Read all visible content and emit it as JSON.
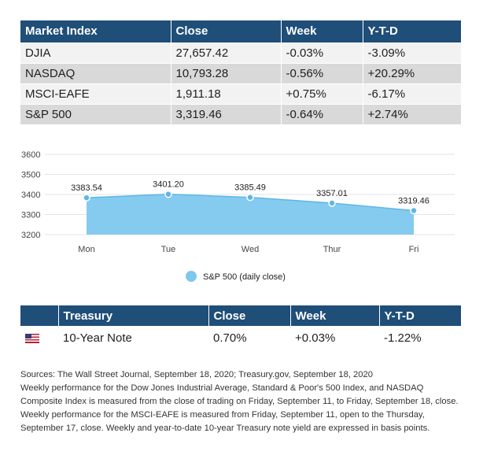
{
  "market": {
    "headers": [
      "Market Index",
      "Close",
      "Week",
      "Y-T-D"
    ],
    "rows": [
      [
        "DJIA",
        "27,657.42",
        "-0.03%",
        "-3.09%"
      ],
      [
        "NASDAQ",
        "10,793.28",
        "-0.56%",
        "+20.29%"
      ],
      [
        "MSCI-EAFE",
        "1,911.18",
        "+0.75%",
        "-6.17%"
      ],
      [
        "S&P 500",
        "3,319.46",
        "-0.64%",
        "+2.74%"
      ]
    ],
    "header_color": "#1f4e79"
  },
  "chart_data": {
    "type": "area",
    "categories": [
      "Mon",
      "Tue",
      "Wed",
      "Thur",
      "Fri"
    ],
    "series": [
      {
        "name": "S&P 500 (daily close)",
        "values": [
          3383.54,
          3401.2,
          3385.49,
          3357.01,
          3319.46
        ],
        "color": "#7ec8ee"
      }
    ],
    "data_labels": [
      "3383.54",
      "3401.20",
      "3385.49",
      "3357.01",
      "3319.46"
    ],
    "yticks": [
      "3200",
      "3300",
      "3400",
      "3500",
      "3600"
    ],
    "ylim": [
      3200,
      3600
    ],
    "grid": true,
    "legend": "bottom"
  },
  "treasury": {
    "headers": [
      "Treasury",
      "Close",
      "Week",
      "Y-T-D"
    ],
    "flag_icon": "us-flag-icon",
    "row": [
      "10-Year Note",
      "0.70%",
      "+0.03%",
      "-1.22%"
    ]
  },
  "notes": {
    "sources": "Sources: The Wall Street Journal, September 18, 2020; Treasury.gov, September 18, 2020",
    "body": "Weekly performance for the Dow Jones Industrial Average, Standard & Poor's 500 Index, and NASDAQ Composite Index is measured from the close of trading on Friday, September 11, to Friday, September 18, close. Weekly performance for the MSCI-EAFE is measured from Friday, September 11, open to the Thursday, September 17, close. Weekly and year-to-date 10-year Treasury note yield are expressed in basis points."
  }
}
